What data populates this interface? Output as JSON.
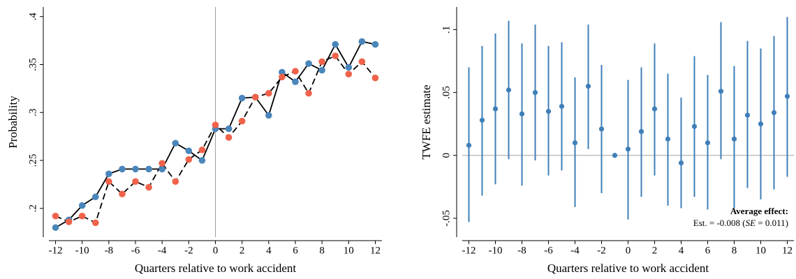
{
  "chart_data": [
    {
      "type": "line",
      "y_label": "Probability",
      "x_label": "Quarters relative to work accident",
      "x": [
        -12,
        -11,
        -10,
        -9,
        -8,
        -7,
        -6,
        -5,
        -4,
        -3,
        -2,
        -1,
        0,
        1,
        2,
        3,
        4,
        5,
        6,
        7,
        8,
        9,
        10,
        11,
        12
      ],
      "series": [
        {
          "color": "#4a86bb",
          "line_color": "#000000",
          "line_style": "solid",
          "values": [
            0.18,
            0.188,
            0.203,
            0.212,
            0.236,
            0.241,
            0.241,
            0.241,
            0.241,
            0.268,
            0.26,
            0.25,
            0.283,
            0.283,
            0.315,
            0.316,
            0.297,
            0.342,
            0.332,
            0.351,
            0.344,
            0.371,
            0.347,
            0.374,
            0.371
          ]
        },
        {
          "color": "#f0624a",
          "line_color": "#000000",
          "line_style": "dashed",
          "values": [
            0.192,
            0.186,
            0.192,
            0.185,
            0.228,
            0.215,
            0.228,
            0.222,
            0.247,
            0.228,
            0.251,
            0.261,
            0.287,
            0.274,
            0.291,
            0.316,
            0.32,
            0.337,
            0.343,
            0.32,
            0.353,
            0.359,
            0.34,
            0.353,
            0.336
          ]
        }
      ],
      "xlim": [
        -12.5,
        12.5
      ],
      "ylim": [
        0.17,
        0.41
      ],
      "xticks": [
        -12,
        -10,
        -8,
        -6,
        -4,
        -2,
        0,
        2,
        4,
        6,
        8,
        10,
        12
      ],
      "yticks": [
        {
          "value": 0.2,
          "label": ".2"
        },
        {
          "value": 0.25,
          "label": ".25"
        },
        {
          "value": 0.3,
          "label": ".3"
        },
        {
          "value": 0.35,
          "label": ".35"
        },
        {
          "value": 0.4,
          "label": ".4"
        }
      ],
      "vline": 0,
      "reference_color": "#a0a0a0"
    },
    {
      "type": "errorbar",
      "y_label": "TWFE estimate",
      "x_label": "Quarters relative to work accident",
      "x": [
        -12,
        -11,
        -10,
        -9,
        -8,
        -7,
        -6,
        -5,
        -4,
        -3,
        -2,
        -1,
        0,
        1,
        2,
        3,
        4,
        5,
        6,
        7,
        8,
        9,
        10,
        11,
        12
      ],
      "series": [
        {
          "color": "#3f7fb8",
          "values": [
            0.008,
            0.028,
            0.037,
            0.052,
            0.033,
            0.05,
            0.035,
            0.039,
            0.01,
            0.055,
            0.021,
            0,
            0.005,
            0.019,
            0.037,
            0.013,
            -0.006,
            0.023,
            0.01,
            0.051,
            0.013,
            0.032,
            0.025,
            0.034,
            0.047
          ],
          "lower": [
            -0.053,
            -0.032,
            -0.023,
            -0.003,
            -0.024,
            -0.004,
            -0.016,
            -0.012,
            -0.041,
            0.005,
            -0.03,
            null,
            -0.051,
            -0.033,
            -0.016,
            -0.04,
            -0.042,
            -0.033,
            -0.043,
            -0.003,
            -0.042,
            -0.026,
            -0.035,
            -0.027,
            -0.017
          ],
          "upper": [
            0.07,
            0.087,
            0.097,
            0.107,
            0.089,
            0.104,
            0.087,
            0.09,
            0.062,
            0.104,
            0.072,
            null,
            0.06,
            0.07,
            0.089,
            0.065,
            0.046,
            0.079,
            0.064,
            0.106,
            0.071,
            0.091,
            0.085,
            0.095,
            0.11
          ]
        }
      ],
      "xlim": [
        -12.5,
        12.5
      ],
      "ylim": [
        -0.065,
        0.118
      ],
      "xticks": [
        -12,
        -10,
        -8,
        -6,
        -4,
        -2,
        0,
        2,
        4,
        6,
        8,
        10,
        12
      ],
      "yticks": [
        {
          "value": -0.05,
          "label": "-.05"
        },
        0,
        {
          "value": 0.05,
          "label": ".05"
        },
        {
          "value": 0.1,
          "label": ".1"
        }
      ],
      "hline": 0,
      "reference_color": "#a0a0a0",
      "annotation": {
        "title": "Average effect:",
        "parts": [
          "Est. = -0.008 (",
          "SE",
          " = 0.011)"
        ]
      }
    }
  ]
}
